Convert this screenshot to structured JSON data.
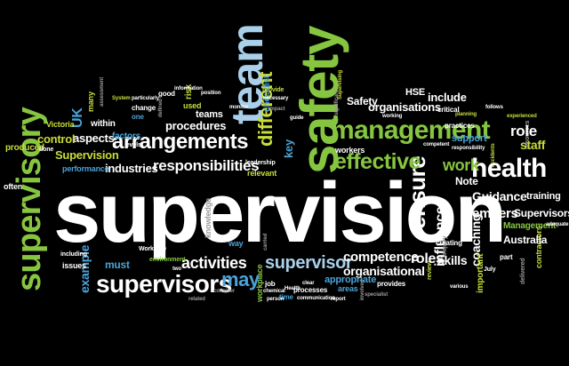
{
  "colors": {
    "background": "#000000",
    "white": "#ffffff",
    "lightblue": "#a9cfe9",
    "blue": "#4aa3d8",
    "green": "#86c540",
    "lime": "#c8dc3a",
    "gray": "#9a9a9a"
  },
  "words": {
    "supervision": "supervision",
    "safety": "safety",
    "team": "team",
    "management": "management",
    "health": "health",
    "effective": "effective",
    "arrangements": "arrangements",
    "supervisory": "supervisory",
    "supervisors": "supervisors",
    "supervisor": "supervisor",
    "responsibilities": "responsibilities",
    "activities": "activities",
    "may": "may",
    "different": "different",
    "ensure": "ensure",
    "work": "work",
    "guidance": "Guidance",
    "members": "members",
    "australia": "Australia",
    "competence": "competence",
    "organisational": "organisational",
    "roles": "roles",
    "skills": "skills",
    "role": "role",
    "staff": "staff",
    "supervisors_cap": "Supervisors",
    "training": "training",
    "management_cap": "Management",
    "organisations": "organisations",
    "include": "include",
    "safety_cap": "Safety",
    "hse": "HSE",
    "industries": "industries",
    "procedures": "procedures",
    "teams": "teams",
    "aspects": "aspects",
    "factors": "factors",
    "uk": "UK",
    "control": "control",
    "victoria": "Victoria",
    "produced": "produced",
    "performance": "performance",
    "supervision_cap": "Supervision",
    "example": "example",
    "must": "must",
    "issues": "issues",
    "including": "including",
    "environment": "environment",
    "leadership": "leadership",
    "relevant": "relevant",
    "key": "key",
    "workers": "workers",
    "note": "Note",
    "influence": "influence",
    "coaching": "coaching",
    "support": "support",
    "used": "used",
    "within": "within",
    "often": "often",
    "appropriate": "appropriate",
    "areas": "areas",
    "processes": "processes",
    "provides": "provides",
    "creating": "creating",
    "important": "important",
    "part": "part",
    "contractors": "contractors",
    "job": "job",
    "time": "time",
    "way": "way",
    "checklist": "checklist",
    "impact": "impact",
    "practices": "practices",
    "critical": "critical",
    "workplace": "workplace",
    "knowledge": "knowledge",
    "risk": "risk",
    "change": "change",
    "one": "one",
    "done": "done",
    "worksafe": "WorkSafe",
    "good": "good",
    "information": "information",
    "position": "position",
    "system": "System",
    "provide": "provide",
    "necessary": "necessary",
    "monitor": "monitor",
    "consider": "consider",
    "related": "related",
    "person": "person",
    "chemical": "chemical",
    "communication": "communication",
    "report": "report",
    "specialist": "specialist",
    "review": "review",
    "delivered": "delivered",
    "resources": "resources",
    "accidents": "accidents",
    "july": "July",
    "levels": "levels",
    "adequate": "adequate",
    "significant": "significant",
    "carried": "carried",
    "working": "working",
    "competent": "competent",
    "planning": "planning",
    "follows": "follows",
    "experienced": "experienced",
    "clear": "clear",
    "guide": "guide",
    "defined": "defined",
    "assessment": "assessment",
    "many": "many",
    "two": "two",
    "health_cap": "Health",
    "supervising": "Supervising",
    "responsibility": "responsibility",
    "particularly": "particularly",
    "inquiry": "inquiry",
    "various": "various",
    "involved": "involved"
  }
}
